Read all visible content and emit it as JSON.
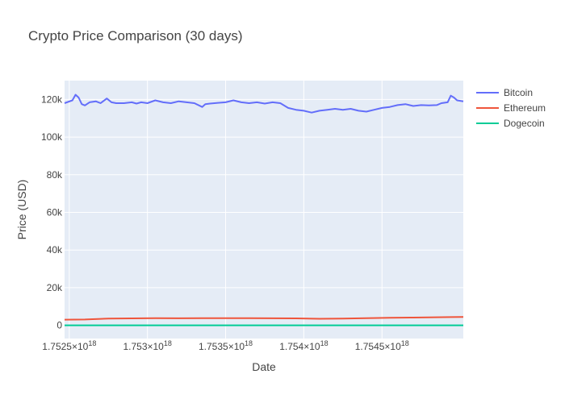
{
  "chart_data": {
    "type": "line",
    "title": "Crypto Price Comparison (30 days)",
    "xlabel": "Date",
    "ylabel": "Price (USD)",
    "xlim": [
      1.75247e+18,
      1.75502e+18
    ],
    "ylim": [
      -7000,
      130000
    ],
    "grid": true,
    "legend_position": "top-right",
    "plot_background": "#e5ecf6",
    "x_ticks": [
      {
        "value": 1.7525e+18,
        "mantissa": "1.7525",
        "exponent": "18"
      },
      {
        "value": 1.753e+18,
        "mantissa": "1.753",
        "exponent": "18"
      },
      {
        "value": 1.7535e+18,
        "mantissa": "1.7535",
        "exponent": "18"
      },
      {
        "value": 1.754e+18,
        "mantissa": "1.754",
        "exponent": "18"
      },
      {
        "value": 1.7545e+18,
        "mantissa": "1.7545",
        "exponent": "18"
      }
    ],
    "y_ticks": [
      {
        "value": 0,
        "label": "0"
      },
      {
        "value": 20000,
        "label": "20k"
      },
      {
        "value": 40000,
        "label": "40k"
      },
      {
        "value": 60000,
        "label": "60k"
      },
      {
        "value": 80000,
        "label": "80k"
      },
      {
        "value": 100000,
        "label": "100k"
      },
      {
        "value": 120000,
        "label": "120k"
      }
    ],
    "series": [
      {
        "name": "Bitcoin",
        "color": "#636efa",
        "points": [
          [
            1.75247e+18,
            118000
          ],
          [
            1.75252e+18,
            119500
          ],
          [
            1.75254e+18,
            122500
          ],
          [
            1.75256e+18,
            121000
          ],
          [
            1.75258e+18,
            117500
          ],
          [
            1.7526e+18,
            116800
          ],
          [
            1.75263e+18,
            118500
          ],
          [
            1.75267e+18,
            119000
          ],
          [
            1.7527e+18,
            118000
          ],
          [
            1.75274e+18,
            120500
          ],
          [
            1.75277e+18,
            118500
          ],
          [
            1.7528e+18,
            118000
          ],
          [
            1.75285e+18,
            118000
          ],
          [
            1.7529e+18,
            118500
          ],
          [
            1.75293e+18,
            117800
          ],
          [
            1.75296e+18,
            118500
          ],
          [
            1.753e+18,
            118000
          ],
          [
            1.75305e+18,
            119500
          ],
          [
            1.7531e+18,
            118500
          ],
          [
            1.75315e+18,
            118000
          ],
          [
            1.7532e+18,
            119000
          ],
          [
            1.75325e+18,
            118500
          ],
          [
            1.7533e+18,
            118000
          ],
          [
            1.75335e+18,
            116000
          ],
          [
            1.75337e+18,
            117500
          ],
          [
            1.7534e+18,
            117800
          ],
          [
            1.75345e+18,
            118200
          ],
          [
            1.7535e+18,
            118500
          ],
          [
            1.75355e+18,
            119500
          ],
          [
            1.7536e+18,
            118500
          ],
          [
            1.75365e+18,
            118000
          ],
          [
            1.7537e+18,
            118500
          ],
          [
            1.75375e+18,
            117800
          ],
          [
            1.7538e+18,
            118500
          ],
          [
            1.75385e+18,
            118000
          ],
          [
            1.7539e+18,
            115500
          ],
          [
            1.75395e+18,
            114500
          ],
          [
            1.754e+18,
            114000
          ],
          [
            1.75405e+18,
            113000
          ],
          [
            1.7541e+18,
            114000
          ],
          [
            1.75415e+18,
            114500
          ],
          [
            1.7542e+18,
            115000
          ],
          [
            1.75425e+18,
            114500
          ],
          [
            1.7543e+18,
            115000
          ],
          [
            1.75435e+18,
            114000
          ],
          [
            1.7544e+18,
            113500
          ],
          [
            1.75445e+18,
            114500
          ],
          [
            1.7545e+18,
            115500
          ],
          [
            1.75455e+18,
            116000
          ],
          [
            1.7546e+18,
            117000
          ],
          [
            1.75465e+18,
            117500
          ],
          [
            1.7547e+18,
            116500
          ],
          [
            1.75475e+18,
            117000
          ],
          [
            1.7548e+18,
            116800
          ],
          [
            1.75485e+18,
            117000
          ],
          [
            1.75488e+18,
            118000
          ],
          [
            1.75492e+18,
            118500
          ],
          [
            1.75494e+18,
            122000
          ],
          [
            1.75496e+18,
            121000
          ],
          [
            1.75498e+18,
            119500
          ],
          [
            1.75502e+18,
            119000
          ]
        ]
      },
      {
        "name": "Ethereum",
        "color": "#ef553b",
        "points": [
          [
            1.75247e+18,
            3000
          ],
          [
            1.7526e+18,
            3100
          ],
          [
            1.75275e+18,
            3600
          ],
          [
            1.7529e+18,
            3700
          ],
          [
            1.75305e+18,
            3800
          ],
          [
            1.7532e+18,
            3750
          ],
          [
            1.75335e+18,
            3800
          ],
          [
            1.7535e+18,
            3800
          ],
          [
            1.75365e+18,
            3850
          ],
          [
            1.7538e+18,
            3750
          ],
          [
            1.75395e+18,
            3700
          ],
          [
            1.7541e+18,
            3500
          ],
          [
            1.75425e+18,
            3600
          ],
          [
            1.7544e+18,
            3800
          ],
          [
            1.75455e+18,
            4000
          ],
          [
            1.7547e+18,
            4150
          ],
          [
            1.75485e+18,
            4300
          ],
          [
            1.75495e+18,
            4400
          ],
          [
            1.75502e+18,
            4450
          ]
        ]
      },
      {
        "name": "Dogecoin",
        "color": "#00cc96",
        "points": [
          [
            1.75247e+18,
            0.2
          ],
          [
            1.7528e+18,
            0.24
          ],
          [
            1.7532e+18,
            0.23
          ],
          [
            1.7536e+18,
            0.22
          ],
          [
            1.754e+18,
            0.21
          ],
          [
            1.7544e+18,
            0.22
          ],
          [
            1.7548e+18,
            0.23
          ],
          [
            1.75502e+18,
            0.23
          ]
        ]
      }
    ]
  }
}
